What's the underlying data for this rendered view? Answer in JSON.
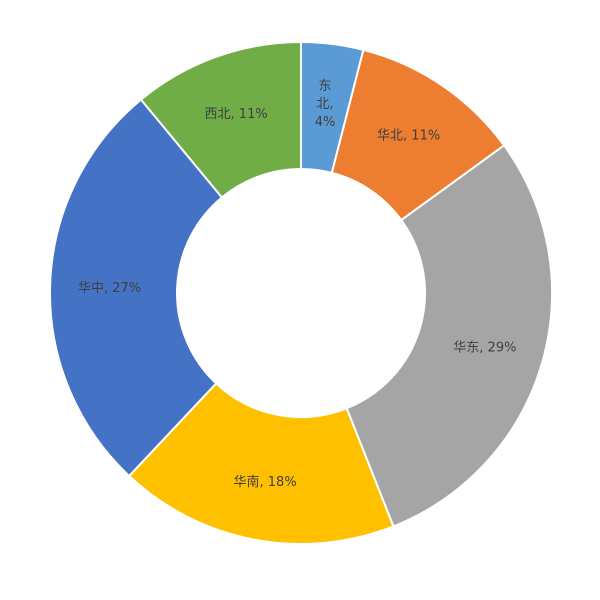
{
  "chart_data": {
    "type": "pie",
    "variant": "donut",
    "title": "",
    "legend": "none",
    "label_separator": ", ",
    "slices": [
      {
        "label": "东北",
        "value": 4,
        "value_label": "4%",
        "color": "#5b9bd5",
        "label_lines": [
          "东",
          "北,",
          "4%"
        ]
      },
      {
        "label": "华北",
        "value": 11,
        "value_label": "11%",
        "color": "#ed7d31"
      },
      {
        "label": "华东",
        "value": 29,
        "value_label": "29%",
        "color": "#a5a5a5"
      },
      {
        "label": "华南",
        "value": 18,
        "value_label": "18%",
        "color": "#ffc000"
      },
      {
        "label": "华中",
        "value": 27,
        "value_label": "27%",
        "color": "#4472c4"
      },
      {
        "label": "西北",
        "value": 11,
        "value_label": "11%",
        "color": "#70ad47"
      }
    ]
  }
}
